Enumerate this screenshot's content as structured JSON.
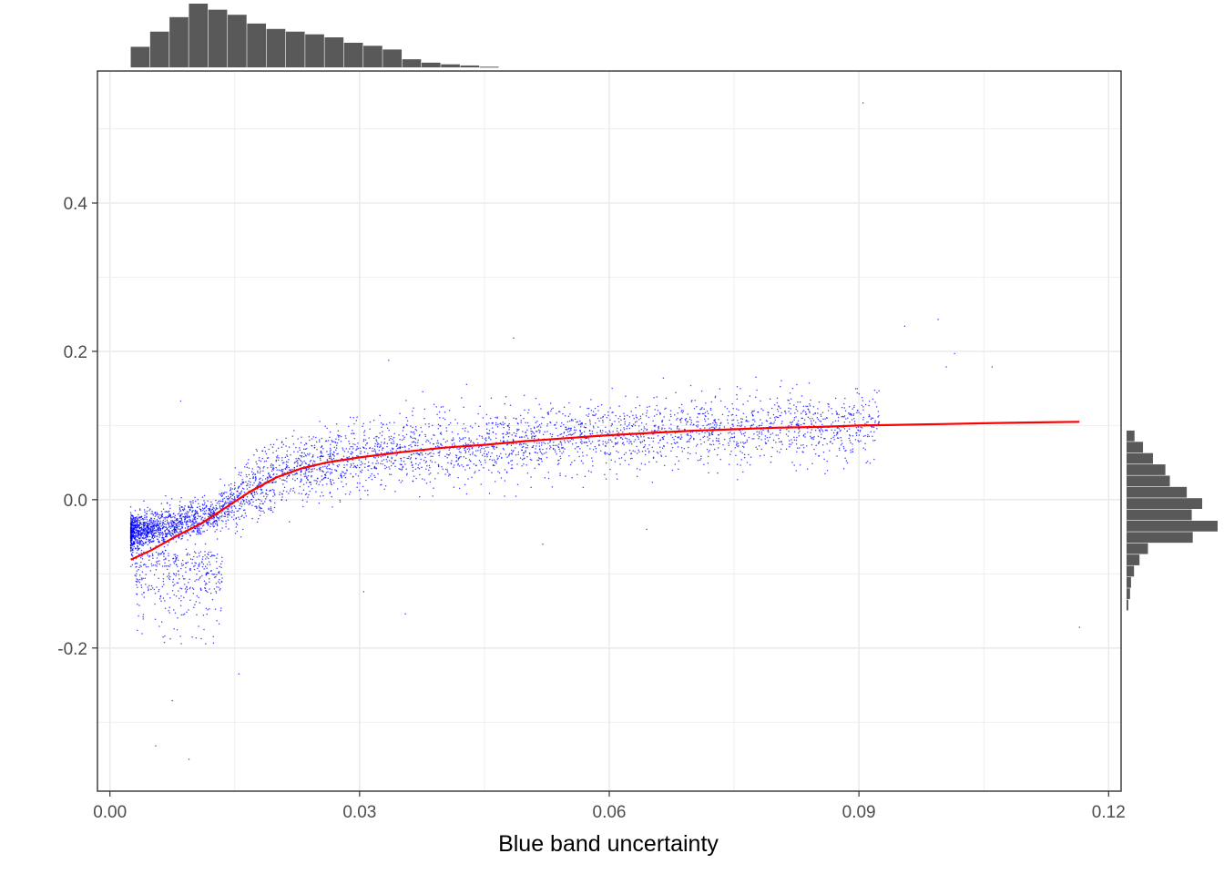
{
  "chart_data": {
    "type": "scatter",
    "title": "",
    "xlabel": "Blue band uncertainty",
    "ylabel": "",
    "xlim": [
      -0.0015,
      0.1215
    ],
    "ylim": [
      -0.393,
      0.578
    ],
    "grid": true,
    "legend": "none",
    "x_ticks": [
      0.0,
      0.03,
      0.06,
      0.09,
      0.12
    ],
    "x_tick_labels": [
      "0.00",
      "0.03",
      "0.06",
      "0.09",
      "0.12"
    ],
    "y_ticks": [
      -0.2,
      0.0,
      0.2,
      0.4
    ],
    "y_tick_labels": [
      "-0.2",
      "0.0",
      "0.2",
      "0.4"
    ],
    "point_color": "#0000ff",
    "trend_color": "#ff0000",
    "histogram_color": "#595959",
    "trend_line": {
      "x": [
        0.0025,
        0.005,
        0.008,
        0.011,
        0.014,
        0.017,
        0.02,
        0.023,
        0.026,
        0.03,
        0.035,
        0.04,
        0.045,
        0.05,
        0.055,
        0.06,
        0.065,
        0.07,
        0.075,
        0.08,
        0.085,
        0.09,
        0.095,
        0.1,
        0.105,
        0.11,
        0.1165
      ],
      "y": [
        -0.081,
        -0.068,
        -0.049,
        -0.032,
        -0.01,
        0.012,
        0.03,
        0.042,
        0.05,
        0.057,
        0.064,
        0.07,
        0.074,
        0.079,
        0.083,
        0.087,
        0.09,
        0.093,
        0.095,
        0.097,
        0.098,
        0.1,
        0.101,
        0.102,
        0.103,
        0.104,
        0.105
      ]
    },
    "outliers": [
      {
        "x": 0.0905,
        "y": 0.535
      },
      {
        "x": 0.0995,
        "y": 0.243
      },
      {
        "x": 0.0955,
        "y": 0.234
      },
      {
        "x": 0.1015,
        "y": 0.197
      },
      {
        "x": 0.0485,
        "y": 0.218
      },
      {
        "x": 0.0335,
        "y": 0.188
      },
      {
        "x": 0.1005,
        "y": 0.179
      },
      {
        "x": 0.106,
        "y": 0.179
      },
      {
        "x": 0.0665,
        "y": 0.164
      },
      {
        "x": 0.1165,
        "y": -0.172
      },
      {
        "x": 0.0645,
        "y": -0.04
      },
      {
        "x": 0.052,
        "y": -0.06
      },
      {
        "x": 0.0085,
        "y": 0.133
      },
      {
        "x": 0.0305,
        "y": -0.124
      },
      {
        "x": 0.0355,
        "y": -0.154
      },
      {
        "x": 0.0155,
        "y": -0.235
      },
      {
        "x": 0.0055,
        "y": -0.332
      },
      {
        "x": 0.0095,
        "y": -0.35
      },
      {
        "x": 0.0075,
        "y": -0.271
      }
    ],
    "x_histogram": {
      "bin_start": 0.0025,
      "bin_width": 0.00233,
      "counts": [
        305,
        530,
        745,
        945,
        855,
        780,
        650,
        570,
        530,
        490,
        445,
        365,
        320,
        265,
        120,
        70,
        45,
        28,
        10
      ]
    },
    "y_histogram": {
      "bin_start": -0.15,
      "bin_width": 0.0152,
      "counts": [
        35,
        70,
        90,
        150,
        260,
        430,
        1330,
        1830,
        1310,
        1520,
        1210,
        870,
        780,
        530,
        330,
        160
      ]
    }
  }
}
